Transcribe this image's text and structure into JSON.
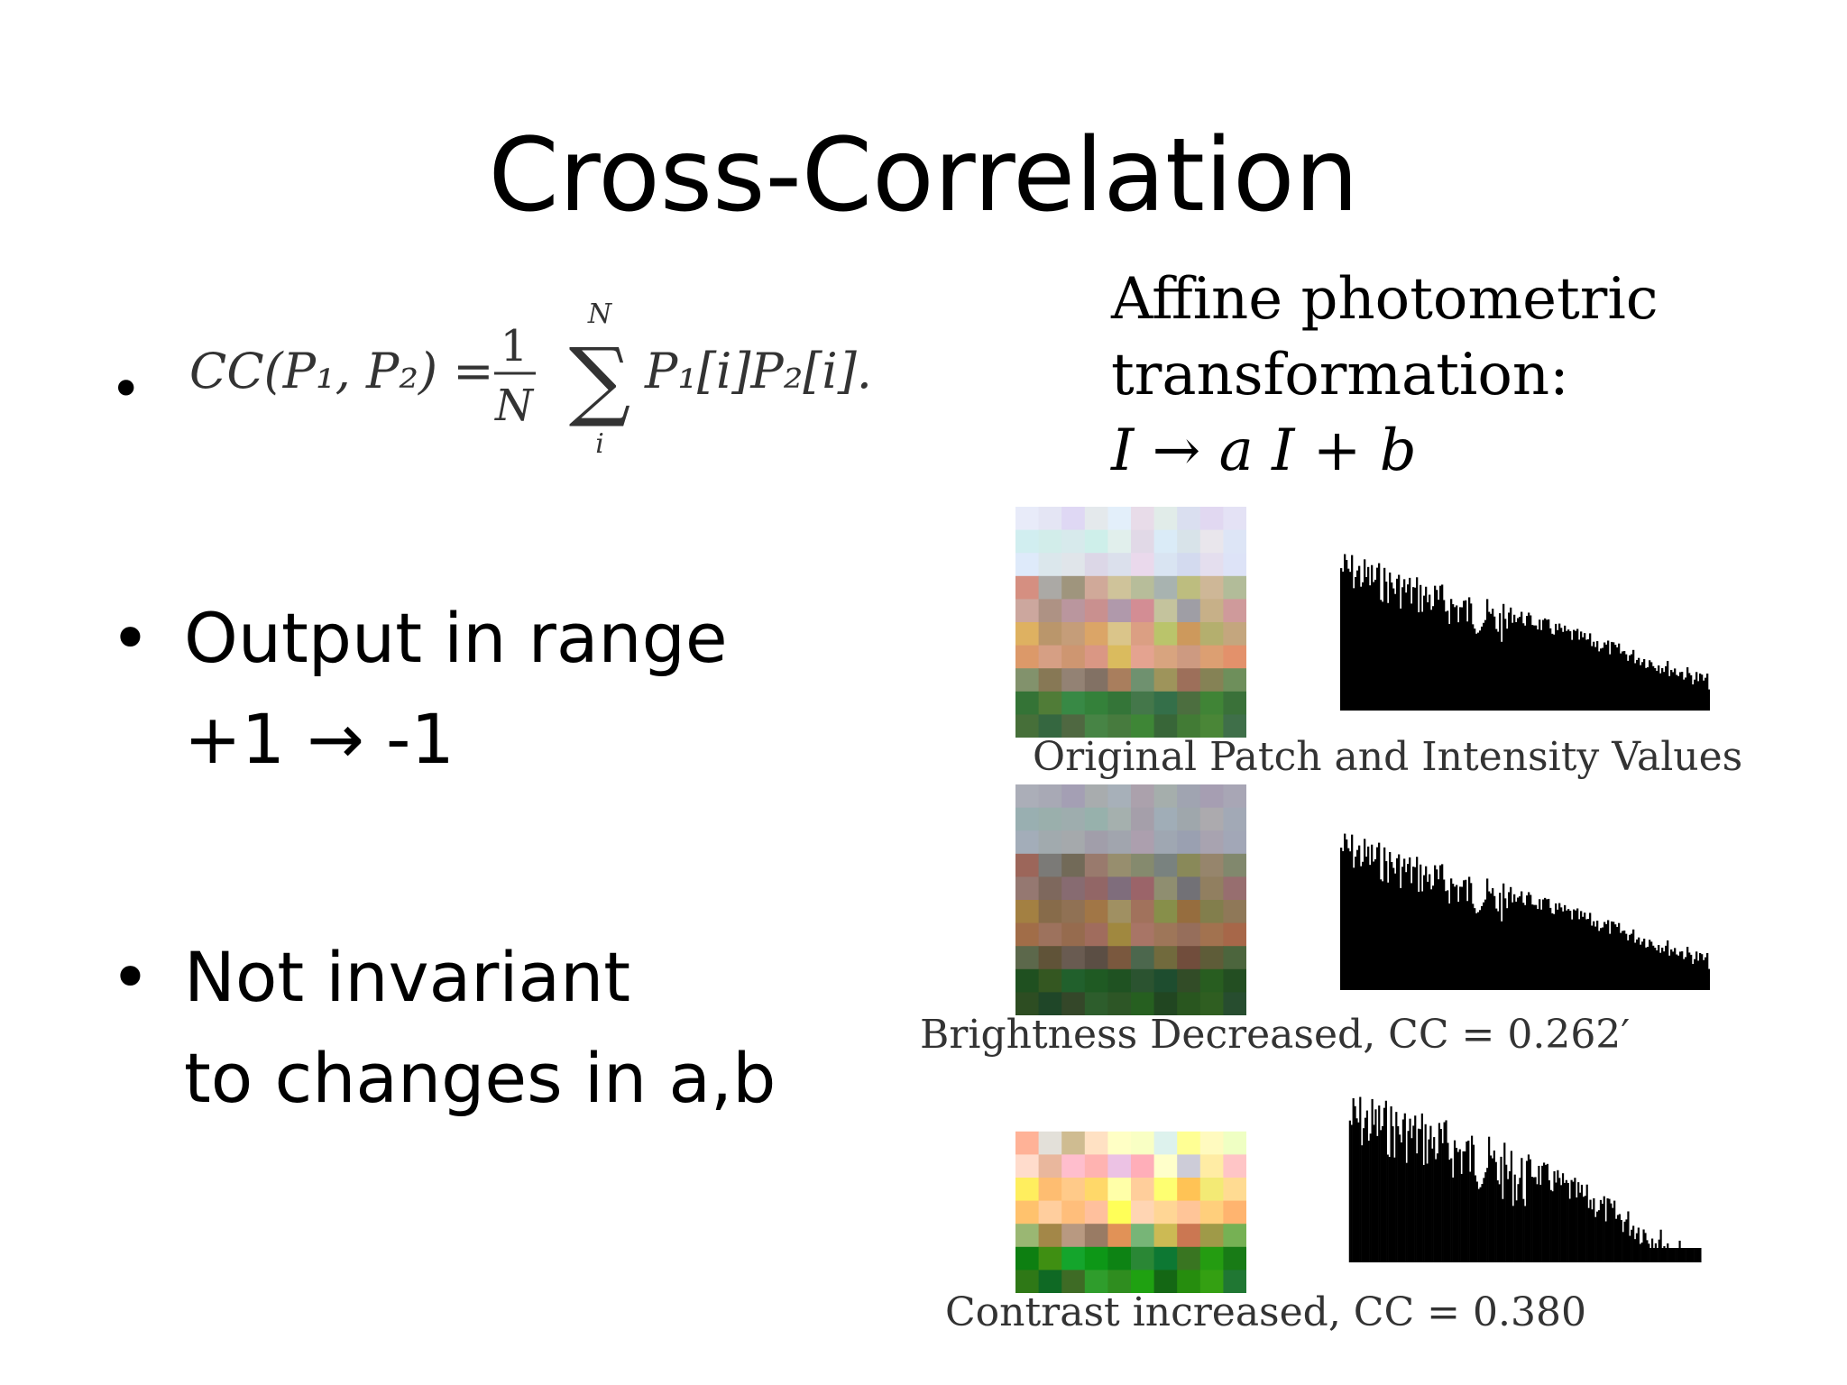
{
  "slide": {
    "title": "Cross-Correlation",
    "formula": {
      "lhs": "CC(P₁, P₂) =",
      "frac_num": "1",
      "frac_den": "N",
      "sum_upper": "N",
      "sum_lower": "i",
      "rhs": "P₁[i]P₂[i]."
    },
    "bullets": [
      {
        "line1": "Output in range",
        "line2": "+1  → -1"
      },
      {
        "line1": "Not invariant",
        "line2": "to changes in a,b"
      }
    ],
    "affine": {
      "line1": "Affine photometric",
      "line2": "transformation:",
      "equation": "I → a I + b"
    },
    "figures": [
      {
        "caption": "Original Patch and Intensity Values",
        "variant": "original"
      },
      {
        "caption": "Brightness Decreased, CC = 0.262′",
        "variant": "darker"
      },
      {
        "caption": "Contrast increased, CC = 0.380",
        "variant": "contrast"
      }
    ]
  }
}
